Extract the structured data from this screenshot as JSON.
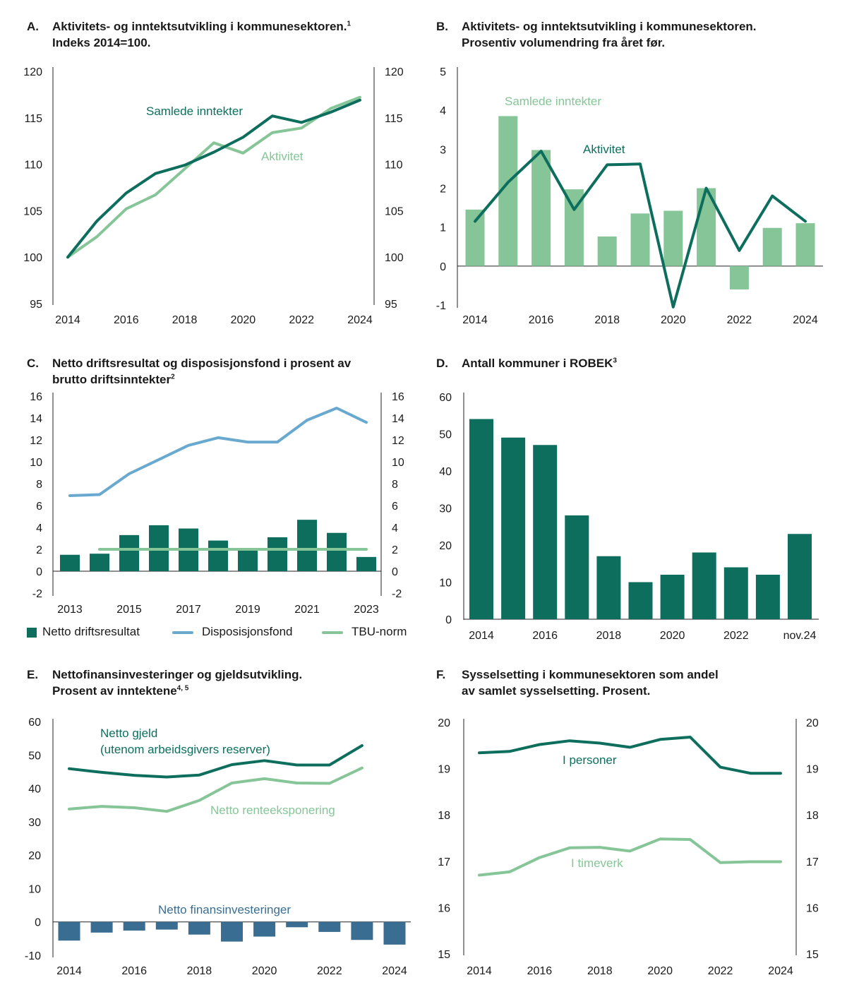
{
  "colors": {
    "dark_green": "#0e6e5e",
    "light_green": "#86c597",
    "light_blue": "#6aa9cf",
    "dark_blue": "#3a6d92"
  },
  "panels": {
    "A": {
      "letter": "A.",
      "title": "Aktivitets- og inntektsutvikling i kommunesektoren.",
      "title_sup": "1",
      "title_line2": "Indeks 2014=100.",
      "chart_data": {
        "type": "line",
        "x": [
          2014,
          2015,
          2016,
          2017,
          2018,
          2019,
          2020,
          2021,
          2022,
          2023,
          2024
        ],
        "series": [
          {
            "name": "Samlede inntekter",
            "values": [
              100,
              103.9,
              106.9,
              109.0,
              109.9,
              111.3,
              112.9,
              115.2,
              114.5,
              115.6,
              116.9
            ]
          },
          {
            "name": "Aktivitet",
            "values": [
              100,
              102.2,
              105.2,
              106.7,
              109.5,
              112.3,
              111.2,
              113.4,
              113.9,
              116.0,
              117.2
            ]
          }
        ],
        "ylim": [
          95,
          120
        ],
        "yticks": [
          "95",
          "100",
          "105",
          "110",
          "115",
          "120"
        ],
        "xticks": [
          "2014",
          "2016",
          "2018",
          "2020",
          "2022",
          "2024"
        ],
        "annotations": [
          "Samlede inntekter",
          "Aktivitet"
        ]
      }
    },
    "B": {
      "letter": "B.",
      "title": "Aktivitets- og inntektsutvikling i kommunesektoren.",
      "title_line2": "Prosentiv volumendring fra året før.",
      "chart_data": {
        "type": "bar",
        "x": [
          2014,
          2015,
          2016,
          2017,
          2018,
          2019,
          2020,
          2021,
          2022,
          2023,
          2024
        ],
        "series": [
          {
            "name": "Samlede inntekter",
            "kind": "bar",
            "values": [
              1.45,
              3.85,
              2.98,
              1.97,
              0.76,
              1.35,
              1.42,
              2.0,
              -0.6,
              0.98,
              1.1
            ]
          },
          {
            "name": "Aktivitet",
            "kind": "line",
            "values": [
              1.15,
              2.15,
              2.95,
              1.45,
              2.6,
              2.62,
              -1.05,
              2.0,
              0.4,
              1.8,
              1.15
            ]
          }
        ],
        "ylim": [
          -1,
          5
        ],
        "yticks": [
          "-1",
          "0",
          "1",
          "2",
          "3",
          "4",
          "5"
        ],
        "xticks": [
          "2014",
          "2016",
          "2018",
          "2020",
          "2022",
          "2024"
        ],
        "annotations": [
          "Samlede inntekter",
          "Aktivitet"
        ]
      }
    },
    "C": {
      "letter": "C.",
      "title": "Netto driftsresultat og disposisjonsfond i prosent av",
      "title_line2": "brutto driftsinntekter",
      "title_sup": "2",
      "chart_data": {
        "type": "bar",
        "x": [
          2013,
          2014,
          2015,
          2016,
          2017,
          2018,
          2019,
          2020,
          2021,
          2022,
          2023
        ],
        "series": [
          {
            "name": "Netto driftsresultat",
            "kind": "bar",
            "values": [
              1.5,
              1.6,
              3.3,
              4.2,
              3.9,
              2.8,
              2.0,
              3.1,
              4.7,
              3.5,
              1.3
            ]
          },
          {
            "name": "Disposisjonsfond",
            "kind": "line",
            "values": [
              6.9,
              7.0,
              8.9,
              10.2,
              11.5,
              12.2,
              11.8,
              11.8,
              13.8,
              14.9,
              13.6
            ]
          },
          {
            "name": "TBU-norm",
            "kind": "line",
            "x": [
              2014,
              2015,
              2016,
              2017,
              2018,
              2019,
              2020,
              2021,
              2022,
              2023
            ],
            "values": [
              2,
              2,
              2,
              2,
              2,
              2,
              2,
              2,
              2,
              2
            ]
          }
        ],
        "ylim": [
          -2,
          16
        ],
        "yticks": [
          "-2",
          "0",
          "2",
          "4",
          "6",
          "8",
          "10",
          "12",
          "14",
          "16"
        ],
        "xticks": [
          "2013",
          "2015",
          "2017",
          "2019",
          "2021",
          "2023"
        ],
        "legend": [
          "Netto driftsresultat",
          "Disposisjonsfond",
          "TBU-norm"
        ]
      }
    },
    "D": {
      "letter": "D.",
      "title": "Antall kommuner i ROBEK",
      "title_sup": "3",
      "chart_data": {
        "type": "bar",
        "categories": [
          "2014",
          "2015",
          "2016",
          "2017",
          "2018",
          "2019",
          "2020",
          "2021",
          "2022",
          "2023",
          "nov.24"
        ],
        "values": [
          54,
          49,
          47,
          28,
          17,
          10,
          12,
          18,
          14,
          12,
          23
        ],
        "ylim": [
          0,
          60
        ],
        "yticks": [
          "0",
          "10",
          "20",
          "30",
          "40",
          "50",
          "60"
        ],
        "xticks": [
          "2014",
          "2016",
          "2018",
          "2020",
          "2022",
          "nov.24"
        ]
      }
    },
    "E": {
      "letter": "E.",
      "title": "Nettofinansinvesteringer og gjeldsutvikling.",
      "title_line2": "Prosent av inntektene",
      "title_sup": "4, 5",
      "chart_data": {
        "type": "line",
        "x": [
          2014,
          2015,
          2016,
          2017,
          2018,
          2019,
          2020,
          2021,
          2022,
          2023
        ],
        "series": [
          {
            "name": "Netto gjeld (utenom arbeidsgivers reserver)",
            "kind": "line",
            "values": [
              45.9,
              44.8,
              43.9,
              43.4,
              44.0,
              47.1,
              48.3,
              47.0,
              47.0,
              52.8
            ]
          },
          {
            "name": "Netto renteeksponering",
            "kind": "line",
            "values": [
              33.8,
              34.6,
              34.2,
              33.1,
              36.4,
              41.6,
              42.9,
              41.6,
              41.5,
              46.1
            ]
          },
          {
            "name": "Netto finansinvesteringer",
            "kind": "bar",
            "x": [
              2014,
              2015,
              2016,
              2017,
              2018,
              2019,
              2020,
              2021,
              2022,
              2023,
              2024
            ],
            "values": [
              -5.6,
              -3.2,
              -2.6,
              -2.3,
              -3.8,
              -5.9,
              -4.4,
              -1.6,
              -3.0,
              -5.4,
              -6.8
            ]
          }
        ],
        "ylim": [
          -10,
          60
        ],
        "yticks": [
          "-10",
          "0",
          "10",
          "20",
          "30",
          "40",
          "50",
          "60"
        ],
        "xticks": [
          "2014",
          "2016",
          "2018",
          "2020",
          "2022",
          "2024"
        ],
        "annotations": [
          "Netto gjeld",
          "(utenom arbeidsgivers reserver)",
          "Netto renteeksponering",
          "Netto finansinvesteringer"
        ]
      }
    },
    "F": {
      "letter": "F.",
      "title": "Sysselsetting i kommunesektoren som andel",
      "title_line2": "av samlet sysselsetting. Prosent.",
      "chart_data": {
        "type": "line",
        "x": [
          2014,
          2015,
          2016,
          2017,
          2018,
          2019,
          2020,
          2021,
          2022,
          2023,
          2024
        ],
        "series": [
          {
            "name": "I personer",
            "values": [
              19.34,
              19.37,
              19.52,
              19.6,
              19.55,
              19.46,
              19.63,
              19.68,
              19.03,
              18.9,
              18.9
            ]
          },
          {
            "name": "I timeverk",
            "values": [
              16.7,
              16.77,
              17.08,
              17.29,
              17.3,
              17.22,
              17.48,
              17.47,
              16.97,
              16.99,
              16.99
            ]
          }
        ],
        "ylim": [
          15,
          20
        ],
        "yticks": [
          "15",
          "16",
          "17",
          "18",
          "19",
          "20"
        ],
        "xticks": [
          "2014",
          "2016",
          "2018",
          "2020",
          "2022",
          "2024"
        ],
        "annotations": [
          "I personer",
          "I timeverk"
        ]
      }
    }
  }
}
